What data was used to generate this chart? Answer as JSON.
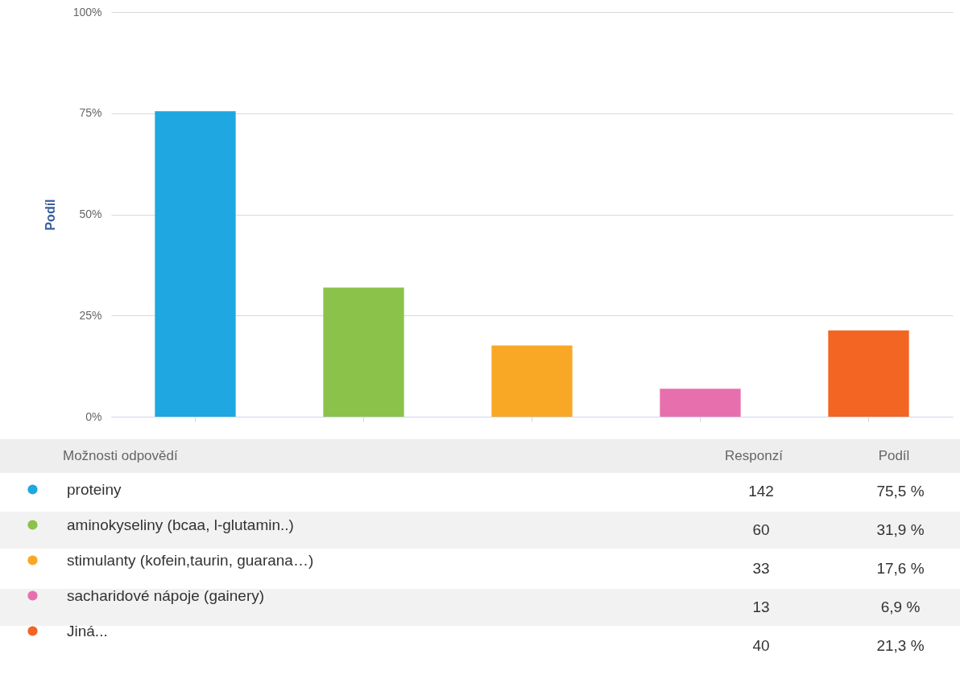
{
  "chart_data": {
    "type": "bar",
    "ylabel": "Podíl",
    "categories": [
      null,
      null,
      null,
      null,
      null
    ],
    "series": [
      {
        "name": "proteiny",
        "color": "#1ea7e0",
        "values": [
          75.5,
          null,
          null,
          null,
          null
        ]
      },
      {
        "name": "aminokyseliny (bcaa, l-glutamin..)",
        "color": "#8bc34a",
        "values": [
          null,
          31.9,
          null,
          null,
          null
        ]
      },
      {
        "name": "stimulanty (kofein,taurin, guarana…)",
        "color": "#f9a825",
        "values": [
          null,
          null,
          17.6,
          null,
          null
        ]
      },
      {
        "name": "sacharidové nápoje (gainery)",
        "color": "#e86fae",
        "values": [
          null,
          null,
          null,
          6.9,
          null
        ]
      },
      {
        "name": "Jiná...",
        "color": "#f26522",
        "values": [
          null,
          null,
          null,
          null,
          21.3
        ]
      }
    ],
    "ylim": [
      0,
      100
    ],
    "yticks": [
      {
        "value": 0,
        "label": "0%"
      },
      {
        "value": 25,
        "label": "25%"
      },
      {
        "value": 50,
        "label": "50%"
      },
      {
        "value": 75,
        "label": "75%"
      },
      {
        "value": 100,
        "label": "100%"
      }
    ],
    "grid": "y",
    "legend": "bottom",
    "tick_labels": "y",
    "annotations": [
      "Možnosti odpovědí",
      "Responzí",
      "Podíl",
      "142",
      "75,5 %",
      "60",
      "31,9 %",
      "33",
      "17,6 %",
      "13",
      "6,9 %",
      "40",
      "21,3 %"
    ]
  }
}
